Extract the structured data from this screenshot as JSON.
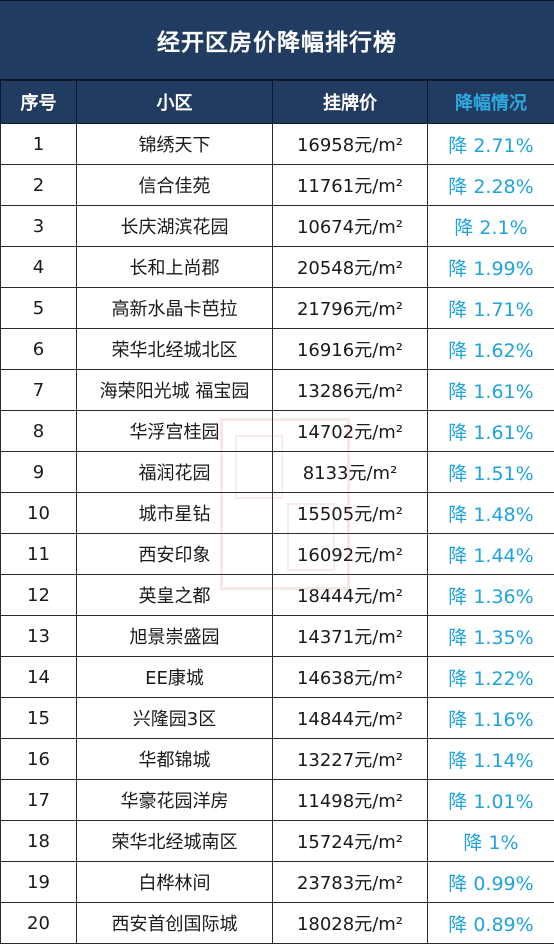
{
  "title": "经开区房价降幅排行榜",
  "headers": {
    "rank": "序号",
    "community": "小区",
    "price": "挂牌价",
    "drop": "降幅情况"
  },
  "colors": {
    "header_bg": "#223b61",
    "drop_text": "#1fa3df",
    "drop_header_text": "#2fa8e0"
  },
  "rows": [
    {
      "rank": "1",
      "community": "锦绣天下",
      "price": "16958元/m²",
      "drop": "降 2.71%"
    },
    {
      "rank": "2",
      "community": "信合佳苑",
      "price": "11761元/m²",
      "drop": "降 2.28%"
    },
    {
      "rank": "3",
      "community": "长庆湖滨花园",
      "price": "10674元/m²",
      "drop": "降 2.1%"
    },
    {
      "rank": "4",
      "community": "长和上尚郡",
      "price": "20548元/m²",
      "drop": "降 1.99%"
    },
    {
      "rank": "5",
      "community": "高新水晶卡芭拉",
      "price": "21796元/m²",
      "drop": "降 1.71%"
    },
    {
      "rank": "6",
      "community": "荣华北经城北区",
      "price": "16916元/m²",
      "drop": "降 1.62%"
    },
    {
      "rank": "7",
      "community": "海荣阳光城 福宝园",
      "price": "13286元/m²",
      "drop": "降 1.61%"
    },
    {
      "rank": "8",
      "community": "华浮宫桂园",
      "price": "14702元/m²",
      "drop": "降 1.61%"
    },
    {
      "rank": "9",
      "community": "福润花园",
      "price": "8133元/m²",
      "drop": "降 1.51%"
    },
    {
      "rank": "10",
      "community": "城市星钻",
      "price": "15505元/m²",
      "drop": "降 1.48%"
    },
    {
      "rank": "11",
      "community": "西安印象",
      "price": "16092元/m²",
      "drop": "降 1.44%"
    },
    {
      "rank": "12",
      "community": "英皇之都",
      "price": "18444元/m²",
      "drop": "降 1.36%"
    },
    {
      "rank": "13",
      "community": "旭景崇盛园",
      "price": "14371元/m²",
      "drop": "降 1.35%"
    },
    {
      "rank": "14",
      "community": "EE康城",
      "price": "14638元/m²",
      "drop": "降 1.22%"
    },
    {
      "rank": "15",
      "community": "兴隆园3区",
      "price": "14844元/m²",
      "drop": "降 1.16%"
    },
    {
      "rank": "16",
      "community": "华都锦城",
      "price": "13227元/m²",
      "drop": "降 1.14%"
    },
    {
      "rank": "17",
      "community": "华豪花园洋房",
      "price": "11498元/m²",
      "drop": "降 1.01%"
    },
    {
      "rank": "18",
      "community": "荣华北经城南区",
      "price": "15724元/m²",
      "drop": "降 1%"
    },
    {
      "rank": "19",
      "community": "白桦林间",
      "price": "23783元/m²",
      "drop": "降 0.99%"
    },
    {
      "rank": "20",
      "community": "西安首创国际城",
      "price": "18028元/m²",
      "drop": "降 0.89%"
    }
  ]
}
